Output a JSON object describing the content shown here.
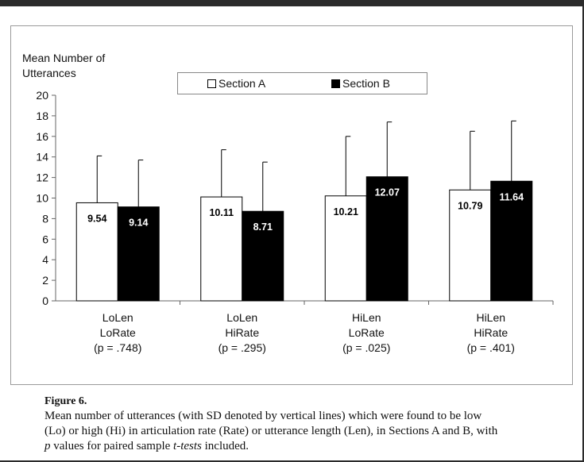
{
  "chart_data": {
    "type": "bar",
    "ylabel_lines": [
      "Mean Number of",
      "Utterances"
    ],
    "ylim": [
      0,
      20
    ],
    "yticks": [
      0,
      2,
      4,
      6,
      8,
      10,
      12,
      14,
      16,
      18,
      20
    ],
    "categories": [
      {
        "lines": [
          "LoLen",
          "LoRate",
          "(p = .748)"
        ]
      },
      {
        "lines": [
          "LoLen",
          "HiRate",
          "(p = .295)"
        ]
      },
      {
        "lines": [
          "HiLen",
          "LoRate",
          "(p = .025)"
        ]
      },
      {
        "lines": [
          "HiLen",
          "HiRate",
          "(p = .401)"
        ]
      }
    ],
    "series": [
      {
        "name": "Section A",
        "color": "#ffffff",
        "text_color": "#000000",
        "values": [
          9.54,
          10.11,
          10.21,
          10.79
        ],
        "labels": [
          "9.54",
          "10.11",
          "10.21",
          "10.79"
        ],
        "err_top": [
          14.1,
          14.7,
          16.0,
          16.5
        ]
      },
      {
        "name": "Section B",
        "color": "#000000",
        "text_color": "#ffffff",
        "values": [
          9.14,
          8.71,
          12.07,
          11.64
        ],
        "labels": [
          "9.14",
          "8.71",
          "12.07",
          "11.64"
        ],
        "err_top": [
          13.7,
          13.5,
          17.4,
          17.5
        ]
      }
    ],
    "grid": false,
    "legend_position": "top"
  },
  "caption": {
    "title": "Figure 6.",
    "line1": "Mean number of utterances (with SD denoted by vertical lines) which were found to be low",
    "line2": "(Lo) or high (Hi) in articulation rate (Rate) or utterance length (Len), in Sections A and B, with",
    "line3_p": "p",
    "line3_mid": " values for paired sample ",
    "line3_t": "t-tests",
    "line3_end": " included."
  }
}
